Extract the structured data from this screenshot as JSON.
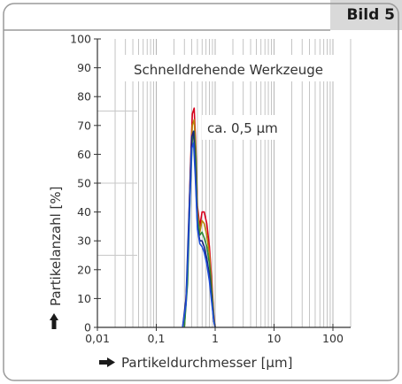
{
  "figure_label": "Bild 5",
  "chart_data": {
    "type": "line",
    "title": "Schnelldrehende Werkzeuge",
    "annotation": "ca. 0,5 µm",
    "xlabel": "Partikeldurchmesser [µm]",
    "ylabel": "Partikelanzahl [%]",
    "xscale": "log",
    "xlim": [
      0.01,
      200
    ],
    "ylim": [
      0,
      100
    ],
    "x_ticks": [
      0.01,
      0.1,
      1,
      10,
      100
    ],
    "x_tick_labels": [
      "0,01",
      "0,1",
      "1",
      "10",
      "100"
    ],
    "y_ticks": [
      0,
      10,
      20,
      30,
      40,
      50,
      60,
      70,
      80,
      90,
      100
    ],
    "y_tick_labels": [
      "0",
      "10",
      "20",
      "30",
      "40",
      "50",
      "60",
      "70",
      "80",
      "90",
      "100"
    ],
    "grid": true,
    "series": [
      {
        "color": "#d6001c",
        "x": [
          0.3,
          0.34,
          0.38,
          0.41,
          0.44,
          0.47,
          0.5,
          0.55,
          0.6,
          0.65,
          0.72,
          0.8,
          0.88,
          0.95,
          1.0
        ],
        "y": [
          0,
          20,
          55,
          74,
          76,
          62,
          42,
          35,
          40,
          40,
          36,
          28,
          15,
          4,
          0
        ]
      },
      {
        "color": "#b8860b",
        "x": [
          0.3,
          0.34,
          0.38,
          0.41,
          0.44,
          0.47,
          0.5,
          0.55,
          0.6,
          0.65,
          0.72,
          0.8,
          0.88,
          0.95,
          1.0
        ],
        "y": [
          0,
          18,
          52,
          70,
          72,
          60,
          40,
          33,
          37,
          36,
          32,
          25,
          13,
          3,
          0
        ]
      },
      {
        "color": "#2e8b3a",
        "x": [
          0.3,
          0.34,
          0.38,
          0.41,
          0.44,
          0.47,
          0.5,
          0.55,
          0.6,
          0.65,
          0.72,
          0.8,
          0.88,
          0.95,
          1.0
        ],
        "y": [
          0,
          15,
          48,
          65,
          68,
          58,
          38,
          32,
          33,
          31,
          28,
          22,
          12,
          3,
          0
        ]
      },
      {
        "color": "#1a237e",
        "x": [
          0.28,
          0.32,
          0.36,
          0.4,
          0.43,
          0.46,
          0.5,
          0.55,
          0.6,
          0.65,
          0.72,
          0.8,
          0.88,
          0.95,
          1.0
        ],
        "y": [
          0,
          10,
          40,
          66,
          68,
          55,
          35,
          30,
          30,
          28,
          24,
          18,
          9,
          2,
          0
        ]
      },
      {
        "color": "#1f4fd6",
        "x": [
          0.28,
          0.32,
          0.36,
          0.4,
          0.43,
          0.46,
          0.5,
          0.55,
          0.6,
          0.65,
          0.72,
          0.8,
          0.88,
          0.95,
          1.0
        ],
        "y": [
          0,
          8,
          35,
          62,
          64,
          52,
          34,
          29,
          28,
          26,
          22,
          16,
          8,
          2,
          0
        ]
      }
    ]
  }
}
